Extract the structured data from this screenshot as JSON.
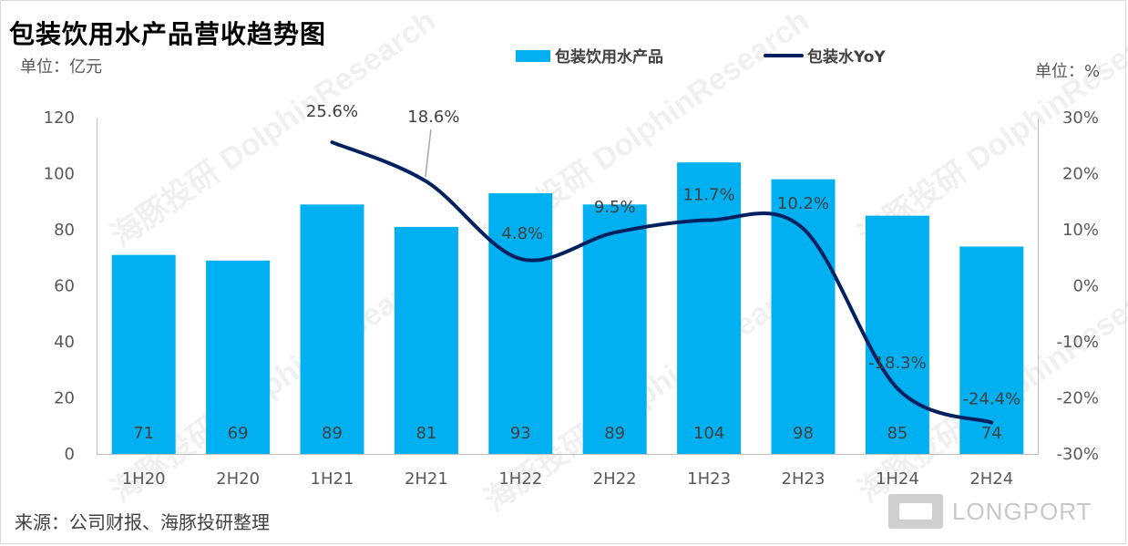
{
  "title": "包装饮用水产品营收趋势图",
  "unit_left": "单位：亿元",
  "unit_right": "单位：%",
  "source": "来源：公司财报、海豚投研整理",
  "brand": "LONGPORT",
  "watermark_text": "DolphinResearch",
  "watermark_cn": "海豚投研",
  "colors": {
    "bar": "#00b0f0",
    "line": "#002060",
    "axis_text": "#595959",
    "label_dark": "#404040"
  },
  "chart_data": {
    "type": "bar",
    "categories": [
      "1H20",
      "2H20",
      "1H21",
      "2H21",
      "1H22",
      "2H22",
      "1H23",
      "2H23",
      "1H24",
      "2H24"
    ],
    "series": [
      {
        "name": "包装饮用水产品",
        "type": "bar",
        "axis": "left",
        "values": [
          71,
          69,
          89,
          81,
          93,
          89,
          104,
          98,
          85,
          74
        ],
        "labels": [
          "71",
          "69",
          "89",
          "81",
          "93",
          "89",
          "104",
          "98",
          "85",
          "74"
        ]
      },
      {
        "name": "包装水YoY",
        "type": "line",
        "axis": "right",
        "values": [
          null,
          null,
          25.6,
          18.6,
          4.8,
          9.5,
          11.7,
          10.2,
          -18.3,
          -24.4
        ],
        "labels": [
          "",
          "",
          "25.6%",
          "18.6%",
          "4.8%",
          "9.5%",
          "11.7%",
          "10.2%",
          "-18.3%",
          "-24.4%"
        ]
      }
    ],
    "y_left": {
      "min": 0,
      "max": 120,
      "step": 20,
      "ticks": [
        "0",
        "20",
        "40",
        "60",
        "80",
        "100",
        "120"
      ]
    },
    "y_right": {
      "min": -30,
      "max": 30,
      "step": 10,
      "ticks": [
        "-30%",
        "-20%",
        "-10%",
        "0%",
        "10%",
        "20%",
        "30%"
      ]
    },
    "legend_position": "top-center",
    "grid": false
  }
}
